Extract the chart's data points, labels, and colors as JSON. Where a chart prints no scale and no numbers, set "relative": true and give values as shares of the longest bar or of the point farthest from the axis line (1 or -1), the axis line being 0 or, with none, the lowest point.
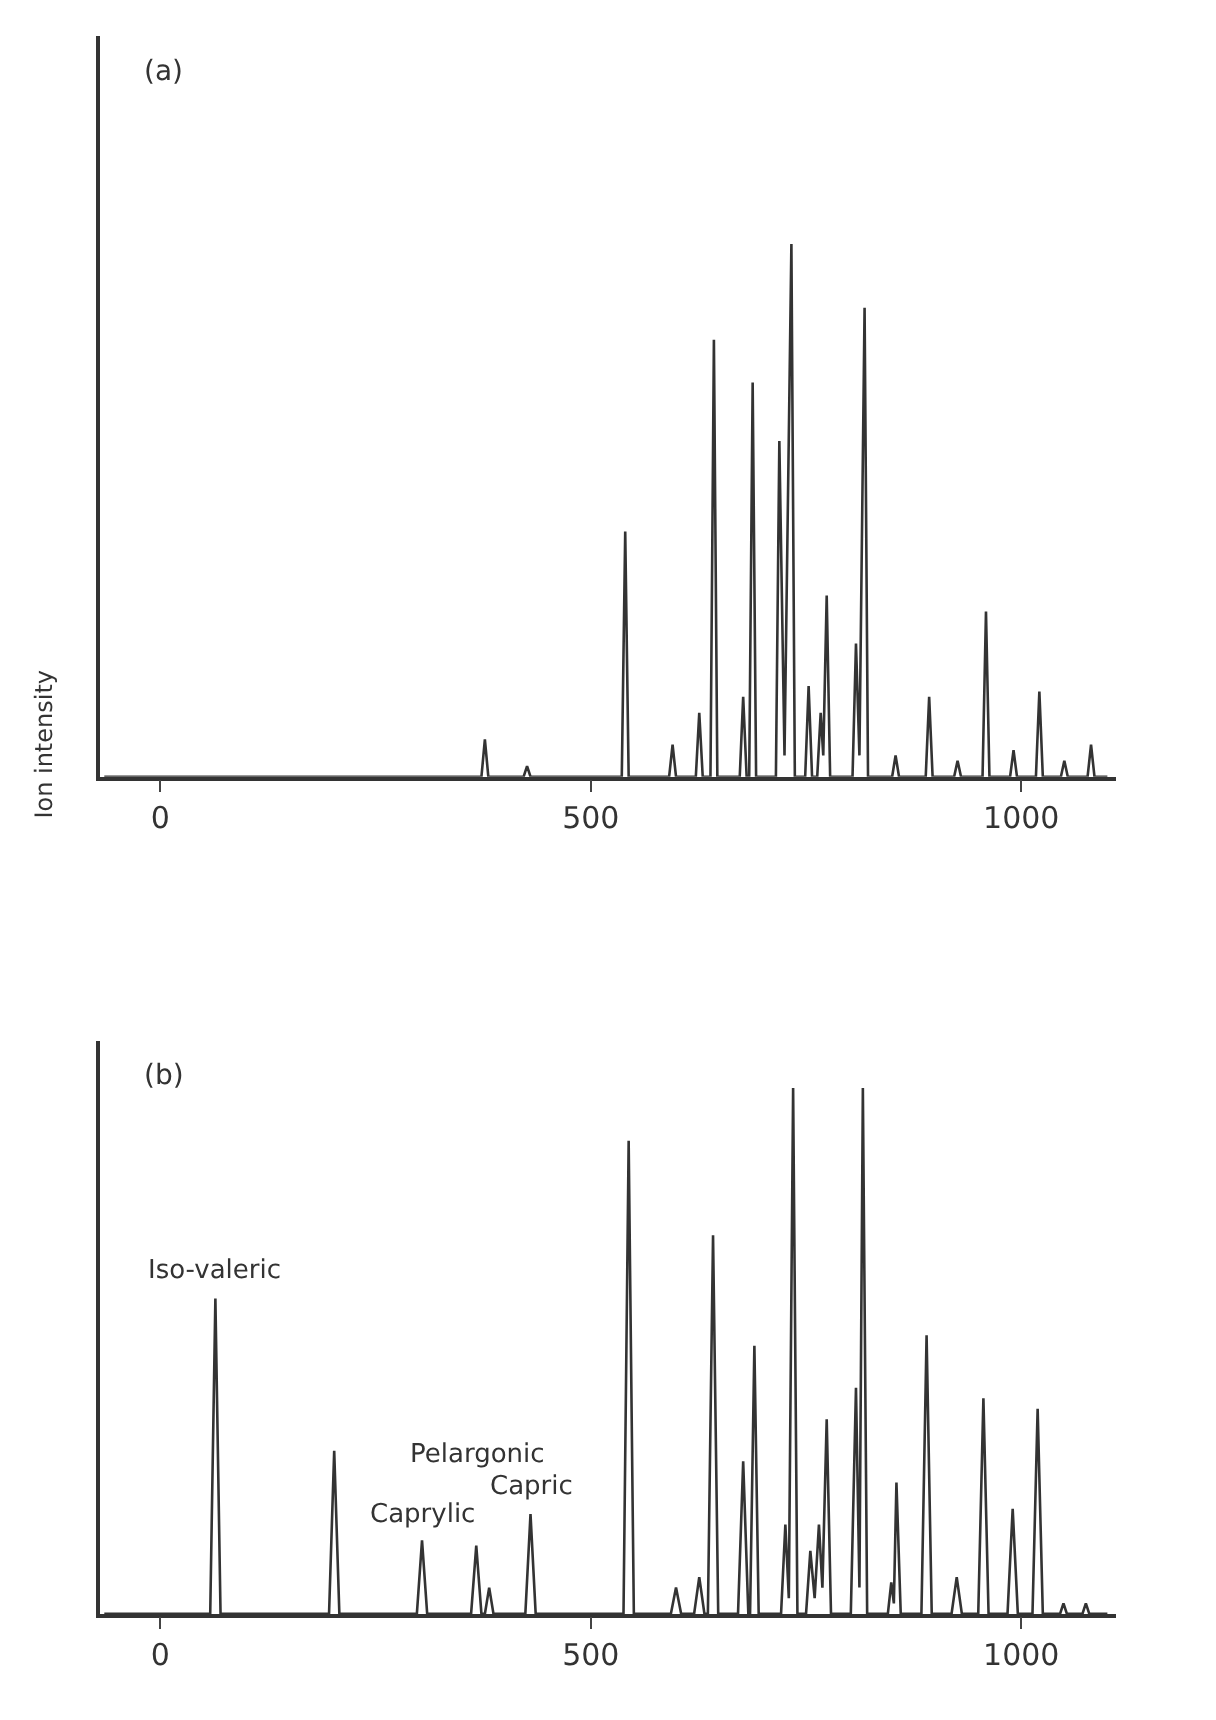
{
  "chart_data": [
    {
      "type": "line",
      "relative": true,
      "title": "(a)",
      "ylabel": "Ion intensity",
      "xlim": [
        -70,
        1110
      ],
      "xticks": [
        0,
        500,
        1000
      ],
      "tick_labels": "x",
      "marker": "none",
      "line_style": "solid",
      "series": [
        {
          "color": "#333333",
          "x": [
            -65,
            373,
            377,
            381,
            422,
            426,
            430,
            536,
            540,
            544,
            591,
            595,
            599,
            622,
            626,
            630,
            639,
            643,
            647,
            673,
            677,
            681,
            684,
            688,
            692,
            715,
            719,
            725,
            733,
            737,
            749,
            753,
            757,
            763,
            767,
            770,
            774,
            778,
            804,
            808,
            812,
            818,
            822,
            850,
            854,
            858,
            889,
            893,
            897,
            922,
            926,
            930,
            955,
            959,
            963,
            987,
            991,
            995,
            1017,
            1021,
            1025,
            1046,
            1050,
            1054,
            1077,
            1081,
            1085,
            1100
          ],
          "values": [
            0,
            0,
            0.07,
            0,
            0,
            0.02,
            0,
            0,
            0.46,
            0,
            0,
            0.06,
            0,
            0,
            0.12,
            0,
            0,
            0.82,
            0,
            0,
            0.15,
            0,
            0,
            0.74,
            0,
            0,
            0.63,
            0.04,
            1,
            0,
            0,
            0.17,
            0,
            0,
            0.12,
            0.04,
            0.34,
            0,
            0,
            0.25,
            0.04,
            0.88,
            0,
            0,
            0.04,
            0,
            0,
            0.15,
            0,
            0,
            0.03,
            0,
            0,
            0.31,
            0,
            0,
            0.05,
            0,
            0,
            0.16,
            0,
            0,
            0.03,
            0,
            0,
            0.06,
            0,
            0
          ]
        }
      ]
    },
    {
      "type": "line",
      "relative": true,
      "title": "(b)",
      "xlim": [
        -70,
        1110
      ],
      "xticks": [
        0,
        500,
        1000
      ],
      "tick_labels": "x",
      "marker": "none",
      "line_style": "solid",
      "annotations": [
        {
          "text": "Iso-valeric",
          "x": 64,
          "y": 0.6
        },
        {
          "text": "Caprylic",
          "x": 304,
          "y": 0.14
        },
        {
          "text": "Pelargonic",
          "x": 367,
          "y": 0.13
        },
        {
          "text": "Capric",
          "x": 430,
          "y": 0.19
        }
      ],
      "series": [
        {
          "color": "#333333",
          "x": [
            -65,
            58,
            64,
            70,
            196,
            202,
            208,
            298,
            304,
            310,
            361,
            367,
            373,
            377,
            382,
            387,
            424,
            430,
            436,
            538,
            544,
            550,
            593,
            599,
            605,
            620,
            626,
            632,
            636,
            642,
            648,
            671,
            677,
            683,
            685,
            690,
            695,
            721,
            726,
            730,
            735,
            740,
            750,
            755,
            760,
            765,
            769,
            774,
            779,
            802,
            808,
            812,
            816,
            821,
            845,
            849,
            852,
            855,
            860,
            884,
            890,
            896,
            919,
            925,
            931,
            950,
            956,
            962,
            984,
            990,
            996,
            1013,
            1019,
            1025,
            1045,
            1049,
            1053,
            1071,
            1075,
            1079,
            1100
          ],
          "values": [
            0,
            0,
            0.6,
            0,
            0,
            0.31,
            0,
            0,
            0.14,
            0,
            0,
            0.13,
            0,
            0,
            0.05,
            0,
            0,
            0.19,
            0,
            0,
            0.9,
            0,
            0,
            0.05,
            0,
            0,
            0.07,
            0,
            0,
            0.72,
            0,
            0,
            0.29,
            0,
            0,
            0.51,
            0,
            0,
            0.17,
            0.03,
            1,
            0,
            0,
            0.12,
            0.03,
            0.17,
            0.05,
            0.37,
            0,
            0,
            0.43,
            0.05,
            1,
            0,
            0,
            0.06,
            0.02,
            0.25,
            0,
            0,
            0.53,
            0,
            0,
            0.07,
            0,
            0,
            0.41,
            0,
            0,
            0.2,
            0,
            0,
            0.39,
            0,
            0,
            0.02,
            0,
            0,
            0.02,
            0,
            0
          ]
        }
      ]
    }
  ]
}
